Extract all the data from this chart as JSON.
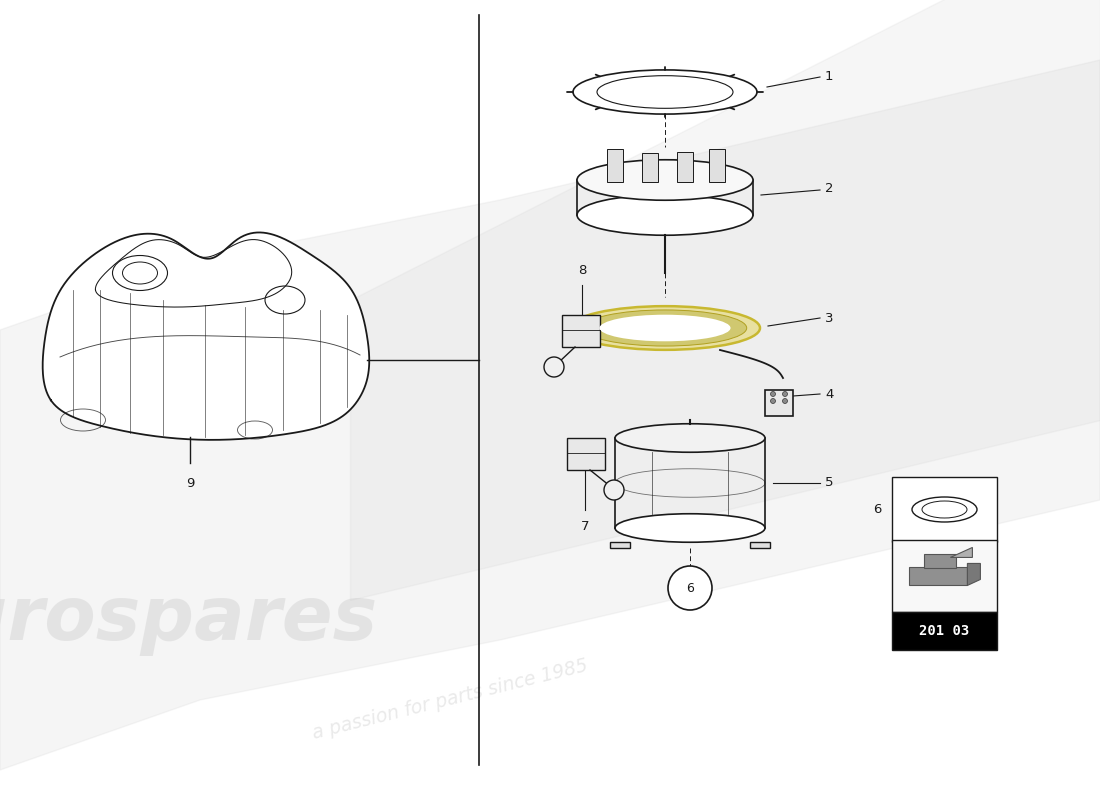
{
  "bg_color": "#ffffff",
  "line_color": "#1a1a1a",
  "lw": 1.0,
  "divider_x": 0.435,
  "watermark1": "eurospares",
  "watermark2": "a passion for parts since 1985",
  "wm_color": "#c8c8c8",
  "wm_alpha": 0.38,
  "part_number": "201 03",
  "label_fs": 9.5,
  "fig_w": 11.0,
  "fig_h": 8.0,
  "xlim": [
    0,
    11
  ],
  "ylim": [
    0,
    8
  ]
}
